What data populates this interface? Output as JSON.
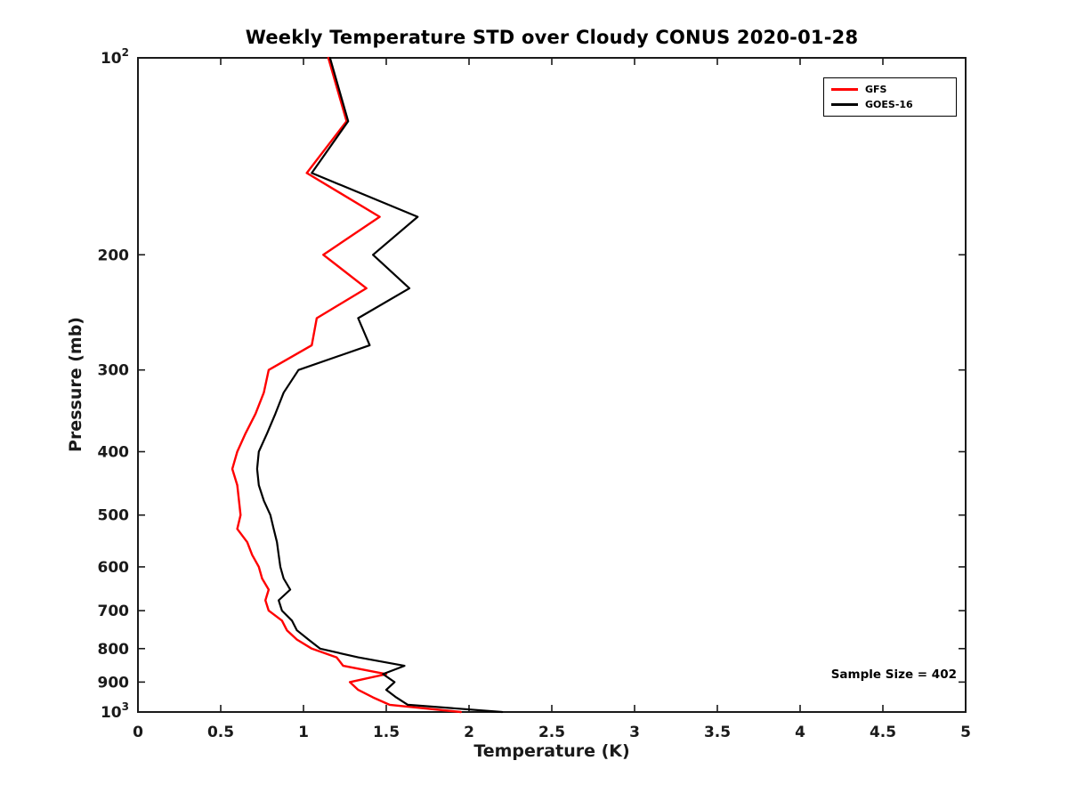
{
  "annotations": {
    "sample_size": "Sample Size = 402"
  },
  "chart_data": {
    "type": "line",
    "title": "Weekly Temperature STD over Cloudy CONUS 2020-01-28",
    "xlabel": "Temperature (K)",
    "ylabel": "Pressure (mb)",
    "xlim": [
      0,
      5
    ],
    "ylim": [
      100,
      1000
    ],
    "y_scale": "log",
    "y_inverted": true,
    "grid": false,
    "legend_position": "top-right",
    "axis_color": "#1a1a1a",
    "x_ticks": [
      0,
      0.5,
      1,
      1.5,
      2,
      2.5,
      3,
      3.5,
      4,
      4.5,
      5
    ],
    "x_tick_labels": [
      "0",
      "0.5",
      "1",
      "1.5",
      "2",
      "2.5",
      "3",
      "3.5",
      "4",
      "4.5",
      "5"
    ],
    "y_ticks": [
      100,
      200,
      300,
      400,
      500,
      600,
      700,
      800,
      900,
      1000
    ],
    "y_tick_labels": [
      "10^2",
      "200",
      "300",
      "400",
      "500",
      "600",
      "700",
      "800",
      "900",
      "10^3"
    ],
    "pressure_levels": [
      100,
      125,
      150,
      175,
      200,
      225,
      250,
      275,
      300,
      325,
      350,
      375,
      400,
      425,
      450,
      475,
      500,
      525,
      550,
      575,
      600,
      625,
      650,
      675,
      700,
      725,
      750,
      775,
      800,
      825,
      850,
      875,
      900,
      925,
      950,
      975,
      1000
    ],
    "series": [
      {
        "name": "GFS",
        "color": "#ff0000",
        "line_width": 2.4,
        "values": [
          1.15,
          1.26,
          1.02,
          1.46,
          1.12,
          1.38,
          1.08,
          1.05,
          0.79,
          0.76,
          0.71,
          0.65,
          0.6,
          0.57,
          0.6,
          0.61,
          0.62,
          0.6,
          0.66,
          0.69,
          0.73,
          0.75,
          0.79,
          0.77,
          0.79,
          0.87,
          0.9,
          0.96,
          1.05,
          1.2,
          1.24,
          1.5,
          1.28,
          1.33,
          1.42,
          1.52,
          1.95
        ]
      },
      {
        "name": "GOES-16",
        "color": "#000000",
        "line_width": 2.2,
        "values": [
          1.16,
          1.27,
          1.05,
          1.69,
          1.42,
          1.64,
          1.33,
          1.4,
          0.97,
          0.88,
          0.83,
          0.78,
          0.73,
          0.72,
          0.73,
          0.76,
          0.8,
          0.82,
          0.84,
          0.85,
          0.86,
          0.88,
          0.92,
          0.85,
          0.87,
          0.93,
          0.96,
          1.03,
          1.1,
          1.33,
          1.61,
          1.48,
          1.55,
          1.5,
          1.56,
          1.63,
          2.2
        ]
      }
    ]
  }
}
